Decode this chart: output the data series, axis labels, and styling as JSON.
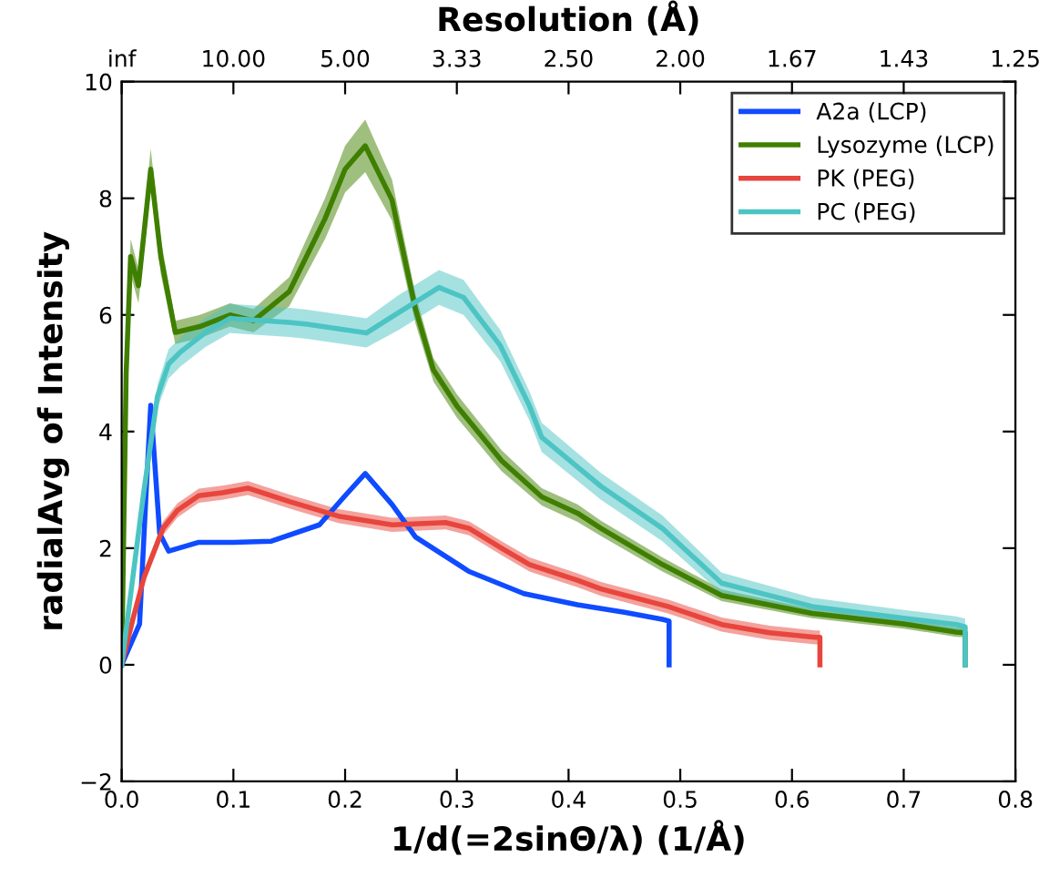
{
  "chart_data": {
    "type": "line",
    "title": "Resolution (Å)",
    "xlabel": "1/d(=2sinΘ/λ) (1/Å)",
    "ylabel": "radialAvg of Intensity",
    "xlim": [
      0,
      0.8
    ],
    "xticks": [
      {
        "value": 0,
        "label": "0.0"
      },
      0.1,
      0.2,
      0.3,
      0.4,
      0.5,
      0.6,
      0.7,
      0.8
    ],
    "annotations": [
      "inf",
      "10.00",
      "5.00",
      "3.33",
      "2.50",
      "2.00",
      "1.67",
      "1.43",
      "1.25"
    ],
    "ylim": [
      -2,
      10
    ],
    "yticks": [
      -2,
      0,
      2,
      4,
      6,
      8,
      10
    ],
    "grid": false,
    "legend": "top right",
    "marker": "none",
    "line_style": "solid",
    "series": [
      {
        "name": "A2a (LCP)",
        "color": "#0f4bff",
        "x": [
          0,
          0.016,
          0.022,
          0.026,
          0.034,
          0.042,
          0.069,
          0.1,
          0.134,
          0.177,
          0.2,
          0.218,
          0.242,
          0.263,
          0.311,
          0.36,
          0.408,
          0.45,
          0.484,
          0.49,
          0.49
        ],
        "values": [
          0,
          0.7,
          3.0,
          4.45,
          2.25,
          1.95,
          2.1,
          2.1,
          2.12,
          2.4,
          2.9,
          3.28,
          2.75,
          2.19,
          1.6,
          1.22,
          1.03,
          0.9,
          0.78,
          0.75,
          0
        ]
      },
      {
        "name": "Lysozyme (LCP)",
        "color": "#3f7f00",
        "x": [
          0,
          0.004,
          0.008,
          0.015,
          0.026,
          0.035,
          0.048,
          0.07,
          0.097,
          0.118,
          0.15,
          0.182,
          0.2,
          0.218,
          0.242,
          0.263,
          0.279,
          0.3,
          0.34,
          0.376,
          0.408,
          0.429,
          0.484,
          0.537,
          0.618,
          0.7,
          0.747,
          0.755,
          0.755
        ],
        "values": [
          0,
          5.0,
          7.0,
          6.5,
          8.5,
          7.0,
          5.7,
          5.8,
          6.0,
          5.9,
          6.4,
          7.65,
          8.5,
          8.9,
          7.97,
          6.1,
          5.06,
          4.44,
          3.5,
          2.88,
          2.6,
          2.34,
          1.72,
          1.19,
          0.88,
          0.7,
          0.56,
          0.55,
          0
        ],
        "lower": [
          0,
          4.7,
          6.7,
          6.2,
          8.15,
          6.7,
          5.5,
          5.6,
          5.8,
          5.7,
          6.15,
          7.3,
          8.1,
          8.45,
          7.62,
          5.85,
          4.86,
          4.24,
          3.32,
          2.73,
          2.45,
          2.21,
          1.6,
          1.09,
          0.8,
          0.62,
          0.48,
          0.47,
          0
        ],
        "upper": [
          0,
          5.3,
          7.3,
          6.8,
          8.85,
          7.3,
          5.9,
          6.0,
          6.2,
          6.1,
          6.65,
          8.0,
          8.9,
          9.35,
          8.32,
          6.35,
          5.26,
          4.64,
          3.68,
          3.03,
          2.75,
          2.47,
          1.84,
          1.29,
          0.96,
          0.78,
          0.64,
          0.63,
          0
        ]
      },
      {
        "name": "PK (PEG)",
        "color": "#e8453c",
        "x": [
          0,
          0.01,
          0.02,
          0.037,
          0.05,
          0.069,
          0.09,
          0.113,
          0.15,
          0.194,
          0.242,
          0.29,
          0.311,
          0.34,
          0.365,
          0.408,
          0.429,
          0.489,
          0.537,
          0.58,
          0.621,
          0.625,
          0.625
        ],
        "values": [
          0,
          0.78,
          1.5,
          2.34,
          2.65,
          2.9,
          2.95,
          3.03,
          2.8,
          2.55,
          2.4,
          2.44,
          2.34,
          2.0,
          1.72,
          1.45,
          1.3,
          1.0,
          0.69,
          0.55,
          0.47,
          0.47,
          0
        ],
        "lower": [
          0,
          0.66,
          1.38,
          2.22,
          2.53,
          2.78,
          2.83,
          2.91,
          2.68,
          2.43,
          2.28,
          2.32,
          2.22,
          1.88,
          1.6,
          1.33,
          1.18,
          0.88,
          0.57,
          0.43,
          0.35,
          0.35,
          0
        ],
        "upper": [
          0,
          0.9,
          1.62,
          2.46,
          2.77,
          3.02,
          3.07,
          3.15,
          2.92,
          2.67,
          2.52,
          2.56,
          2.46,
          2.12,
          1.84,
          1.57,
          1.42,
          1.12,
          0.81,
          0.67,
          0.59,
          0.59,
          0
        ]
      },
      {
        "name": "PC (PEG)",
        "color": "#4dc4c4",
        "x": [
          0,
          0.01,
          0.02,
          0.032,
          0.042,
          0.053,
          0.075,
          0.097,
          0.15,
          0.166,
          0.219,
          0.247,
          0.284,
          0.306,
          0.339,
          0.365,
          0.376,
          0.429,
          0.484,
          0.537,
          0.618,
          0.7,
          0.747,
          0.755,
          0.755
        ],
        "values": [
          0,
          1.5,
          3.0,
          4.6,
          5.16,
          5.37,
          5.7,
          5.94,
          5.87,
          5.84,
          5.69,
          6.03,
          6.47,
          6.3,
          5.47,
          4.44,
          3.9,
          3.06,
          2.34,
          1.4,
          1.0,
          0.8,
          0.69,
          0.65,
          0
        ],
        "lower": [
          0,
          1.3,
          2.8,
          4.4,
          4.91,
          5.12,
          5.45,
          5.69,
          5.62,
          5.59,
          5.44,
          5.73,
          6.17,
          6.0,
          5.2,
          4.19,
          3.65,
          2.83,
          2.12,
          1.22,
          0.85,
          0.66,
          0.55,
          0.51,
          0
        ],
        "upper": [
          0,
          1.7,
          3.2,
          4.8,
          5.41,
          5.62,
          5.95,
          6.19,
          6.12,
          6.09,
          5.94,
          6.33,
          6.77,
          6.6,
          5.74,
          4.69,
          4.15,
          3.29,
          2.56,
          1.58,
          1.15,
          0.94,
          0.83,
          0.79,
          0
        ]
      }
    ]
  }
}
